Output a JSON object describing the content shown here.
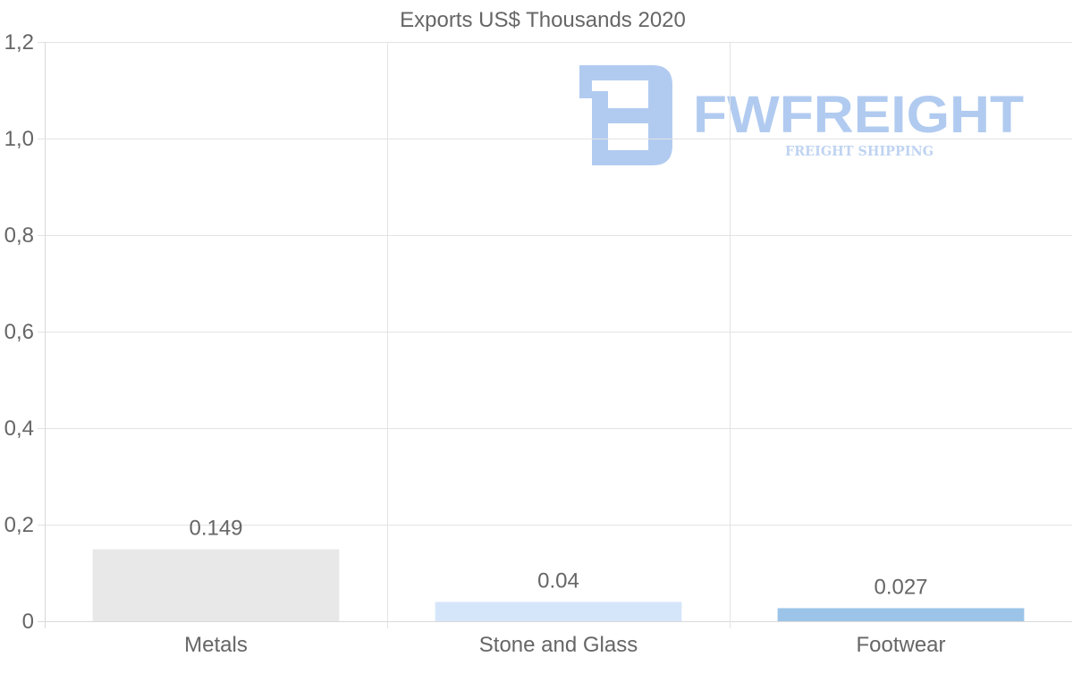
{
  "chart_data": {
    "type": "bar",
    "title": "Exports US$ Thousands 2020",
    "xlabel": "",
    "ylabel": "",
    "categories": [
      "Metals",
      "Stone and Glass",
      "Footwear"
    ],
    "values": [
      0.149,
      0.04,
      0.027
    ],
    "value_labels": [
      "0.149",
      "0.04",
      "0.027"
    ],
    "ylim": [
      0,
      1.2
    ],
    "yticks": [
      0,
      0.2,
      0.4,
      0.6,
      0.8,
      1.0,
      1.2
    ],
    "ytick_labels": [
      "0",
      "0,2",
      "0,4",
      "0,6",
      "0,8",
      "1,0",
      "1,2"
    ],
    "bar_colors": [
      "#e8e8e8",
      "#d6e6fa",
      "#9cc4e8"
    ],
    "grid": true,
    "legend": "none"
  },
  "watermark": {
    "brand": "FWFREIGHT",
    "tagline": "FREIGHT SHIPPING",
    "color": "#a9c6ef"
  }
}
